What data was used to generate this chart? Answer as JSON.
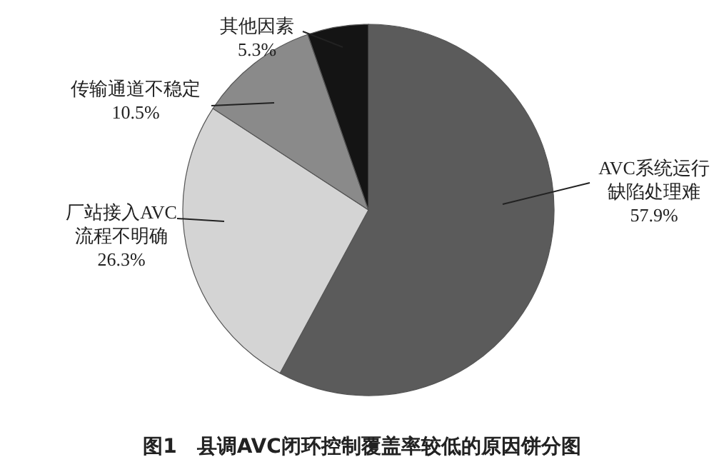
{
  "chart_data": {
    "type": "pie",
    "title": "图1　县调AVC闭环控制覆盖率较低的原因饼分图",
    "categories": [
      "AVC系统运行缺陷处理难",
      "厂站接入AVC流程不明确",
      "传输通道不稳定",
      "其他因素"
    ],
    "values": [
      57.9,
      26.3,
      10.5,
      5.3
    ],
    "colors": [
      "#5b5b5b",
      "#d4d4d4",
      "#8a8a8a",
      "#141414"
    ],
    "value_labels": [
      "57.9%",
      "26.3%",
      "10.5%",
      "5.3%"
    ]
  }
}
